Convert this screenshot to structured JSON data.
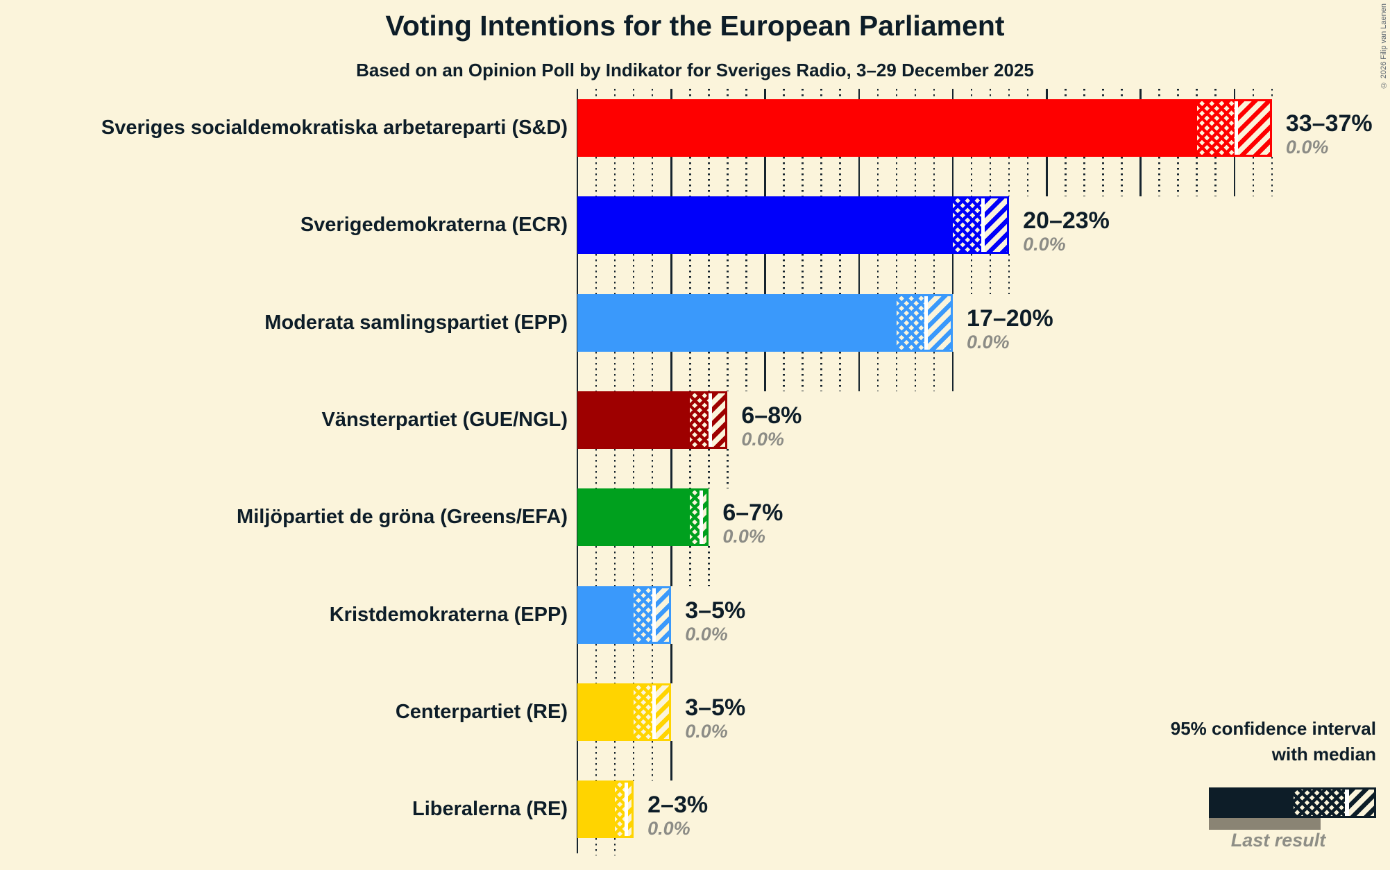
{
  "header": {
    "title": "Voting Intentions for the European Parliament",
    "subtitle": "Based on an Opinion Poll by Indikator for Sveriges Radio, 3–29 December 2025"
  },
  "copyright": "© 2026 Filip van Laenen",
  "legend": {
    "line1": "95% confidence interval",
    "line2": "with median",
    "last_result_label": "Last result"
  },
  "colors": {
    "background": "#fbf4db",
    "text": "#0d1d28",
    "muted_text": "#8c8c86",
    "grid": "#16242e",
    "legend_sample_bar": "#0d1d28",
    "last_result_bar": "#8a8474",
    "median_line": "#ffffff"
  },
  "chart_data": {
    "type": "bar",
    "orientation": "horizontal",
    "unit": "%",
    "title": "Voting Intentions for the European Parliament",
    "axis": {
      "min": 0,
      "max": 37,
      "major_gridline_interval": 5,
      "minor_gridline_interval": 1,
      "tick_labels_visible": false
    },
    "bar_style": "solid up to CI low, crosshatch from CI low to median, white median line, diagonal hatch from median to CI high",
    "parties": [
      {
        "label": "Sveriges socialdemokratiska arbetareparti (S&D)",
        "color": "#fe0000",
        "ci_low": 33,
        "median": 35,
        "ci_high": 37,
        "range_label": "33–37%",
        "last_result_label": "0.0%",
        "last_result_value": 0.0
      },
      {
        "label": "Sverigedemokraterna (ECR)",
        "color": "#0000fa",
        "ci_low": 20,
        "median": 21.5,
        "ci_high": 23,
        "range_label": "20–23%",
        "last_result_label": "0.0%",
        "last_result_value": 0.0
      },
      {
        "label": "Moderata samlingspartiet (EPP)",
        "color": "#3a99fb",
        "ci_low": 17,
        "median": 18.5,
        "ci_high": 20,
        "range_label": "17–20%",
        "last_result_label": "0.0%",
        "last_result_value": 0.0
      },
      {
        "label": "Vänsterpartiet (GUE/NGL)",
        "color": "#9e0000",
        "ci_low": 6,
        "median": 7,
        "ci_high": 8,
        "range_label": "6–8%",
        "last_result_label": "0.0%",
        "last_result_value": 0.0
      },
      {
        "label": "Miljöpartiet de gröna (Greens/EFA)",
        "color": "#00a01e",
        "ci_low": 6,
        "median": 6.5,
        "ci_high": 7,
        "range_label": "6–7%",
        "last_result_label": "0.0%",
        "last_result_value": 0.0
      },
      {
        "label": "Kristdemokraterna (EPP)",
        "color": "#3a99fb",
        "ci_low": 3,
        "median": 4,
        "ci_high": 5,
        "range_label": "3–5%",
        "last_result_label": "0.0%",
        "last_result_value": 0.0
      },
      {
        "label": "Centerpartiet (RE)",
        "color": "#ffd400",
        "ci_low": 3,
        "median": 4,
        "ci_high": 5,
        "range_label": "3–5%",
        "last_result_label": "0.0%",
        "last_result_value": 0.0
      },
      {
        "label": "Liberalerna (RE)",
        "color": "#ffd400",
        "ci_low": 2,
        "median": 2.5,
        "ci_high": 3,
        "range_label": "2–3%",
        "last_result_label": "0.0%",
        "last_result_value": 0.0
      }
    ]
  }
}
